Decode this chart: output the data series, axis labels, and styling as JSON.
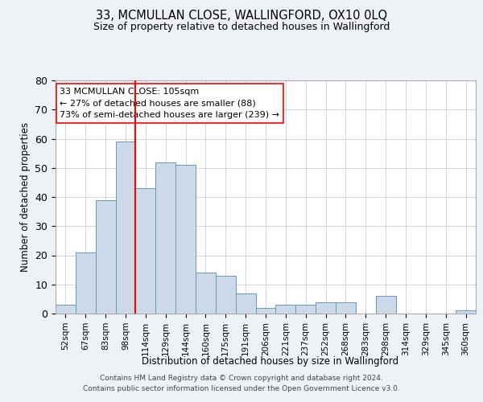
{
  "title": "33, MCMULLAN CLOSE, WALLINGFORD, OX10 0LQ",
  "subtitle": "Size of property relative to detached houses in Wallingford",
  "xlabel": "Distribution of detached houses by size in Wallingford",
  "ylabel": "Number of detached properties",
  "bar_labels": [
    "52sqm",
    "67sqm",
    "83sqm",
    "98sqm",
    "114sqm",
    "129sqm",
    "144sqm",
    "160sqm",
    "175sqm",
    "191sqm",
    "206sqm",
    "221sqm",
    "237sqm",
    "252sqm",
    "268sqm",
    "283sqm",
    "298sqm",
    "314sqm",
    "329sqm",
    "345sqm",
    "360sqm"
  ],
  "bar_values": [
    3,
    21,
    39,
    59,
    43,
    52,
    51,
    14,
    13,
    7,
    2,
    3,
    3,
    4,
    4,
    0,
    6,
    0,
    0,
    0,
    1
  ],
  "bar_color": "#ccd9e8",
  "bar_edge_color": "#6699bb",
  "vline_x": 3.5,
  "vline_color": "red",
  "annotation_text": "33 MCMULLAN CLOSE: 105sqm\n← 27% of detached houses are smaller (88)\n73% of semi-detached houses are larger (239) →",
  "annotation_box_color": "white",
  "annotation_box_edge": "red",
  "ylim": [
    0,
    80
  ],
  "yticks": [
    0,
    10,
    20,
    30,
    40,
    50,
    60,
    70,
    80
  ],
  "footer1": "Contains HM Land Registry data © Crown copyright and database right 2024.",
  "footer2": "Contains public sector information licensed under the Open Government Licence v3.0.",
  "bg_color": "#eef2f7",
  "plot_bg_color": "white",
  "grid_color": "#c8d0da"
}
